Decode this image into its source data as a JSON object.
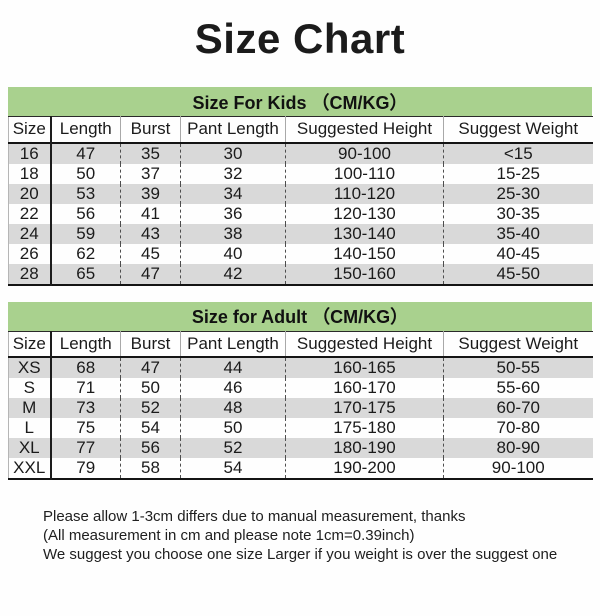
{
  "title": "Size Chart",
  "colors": {
    "section_band_green": "#a9d18e",
    "stripe_gray": "#d9d9d9",
    "text": "#1b1b1b"
  },
  "kids_section": {
    "heading": "Size For Kids （CM/KG）",
    "columns": [
      "Size",
      "Length",
      "Burst",
      "Pant Length",
      "Suggested Height",
      "Suggest Weight"
    ],
    "rows": [
      [
        "16",
        "47",
        "35",
        "30",
        "90-100",
        "<15"
      ],
      [
        "18",
        "50",
        "37",
        "32",
        "100-110",
        "15-25"
      ],
      [
        "20",
        "53",
        "39",
        "34",
        "110-120",
        "25-30"
      ],
      [
        "22",
        "56",
        "41",
        "36",
        "120-130",
        "30-35"
      ],
      [
        "24",
        "59",
        "43",
        "38",
        "130-140",
        "35-40"
      ],
      [
        "26",
        "62",
        "45",
        "40",
        "140-150",
        "40-45"
      ],
      [
        "28",
        "65",
        "47",
        "42",
        "150-160",
        "45-50"
      ]
    ]
  },
  "adult_section": {
    "heading": "Size for Adult （CM/KG）",
    "columns": [
      "Size",
      "Length",
      "Burst",
      "Pant Length",
      "Suggested Height",
      "Suggest Weight"
    ],
    "rows": [
      [
        "XS",
        "68",
        "47",
        "44",
        "160-165",
        "50-55"
      ],
      [
        "S",
        "71",
        "50",
        "46",
        "160-170",
        "55-60"
      ],
      [
        "M",
        "73",
        "52",
        "48",
        "170-175",
        "60-70"
      ],
      [
        "L",
        "75",
        "54",
        "50",
        "175-180",
        "70-80"
      ],
      [
        "XL",
        "77",
        "56",
        "52",
        "180-190",
        "80-90"
      ],
      [
        "XXL",
        "79",
        "58",
        "54",
        "190-200",
        "90-100"
      ]
    ]
  },
  "notes": [
    "Please allow 1-3cm differs due to manual measurement, thanks",
    "(All measurement in cm and please note 1cm=0.39inch)",
    "We suggest you choose one size Larger if you weight is over the suggest one"
  ]
}
